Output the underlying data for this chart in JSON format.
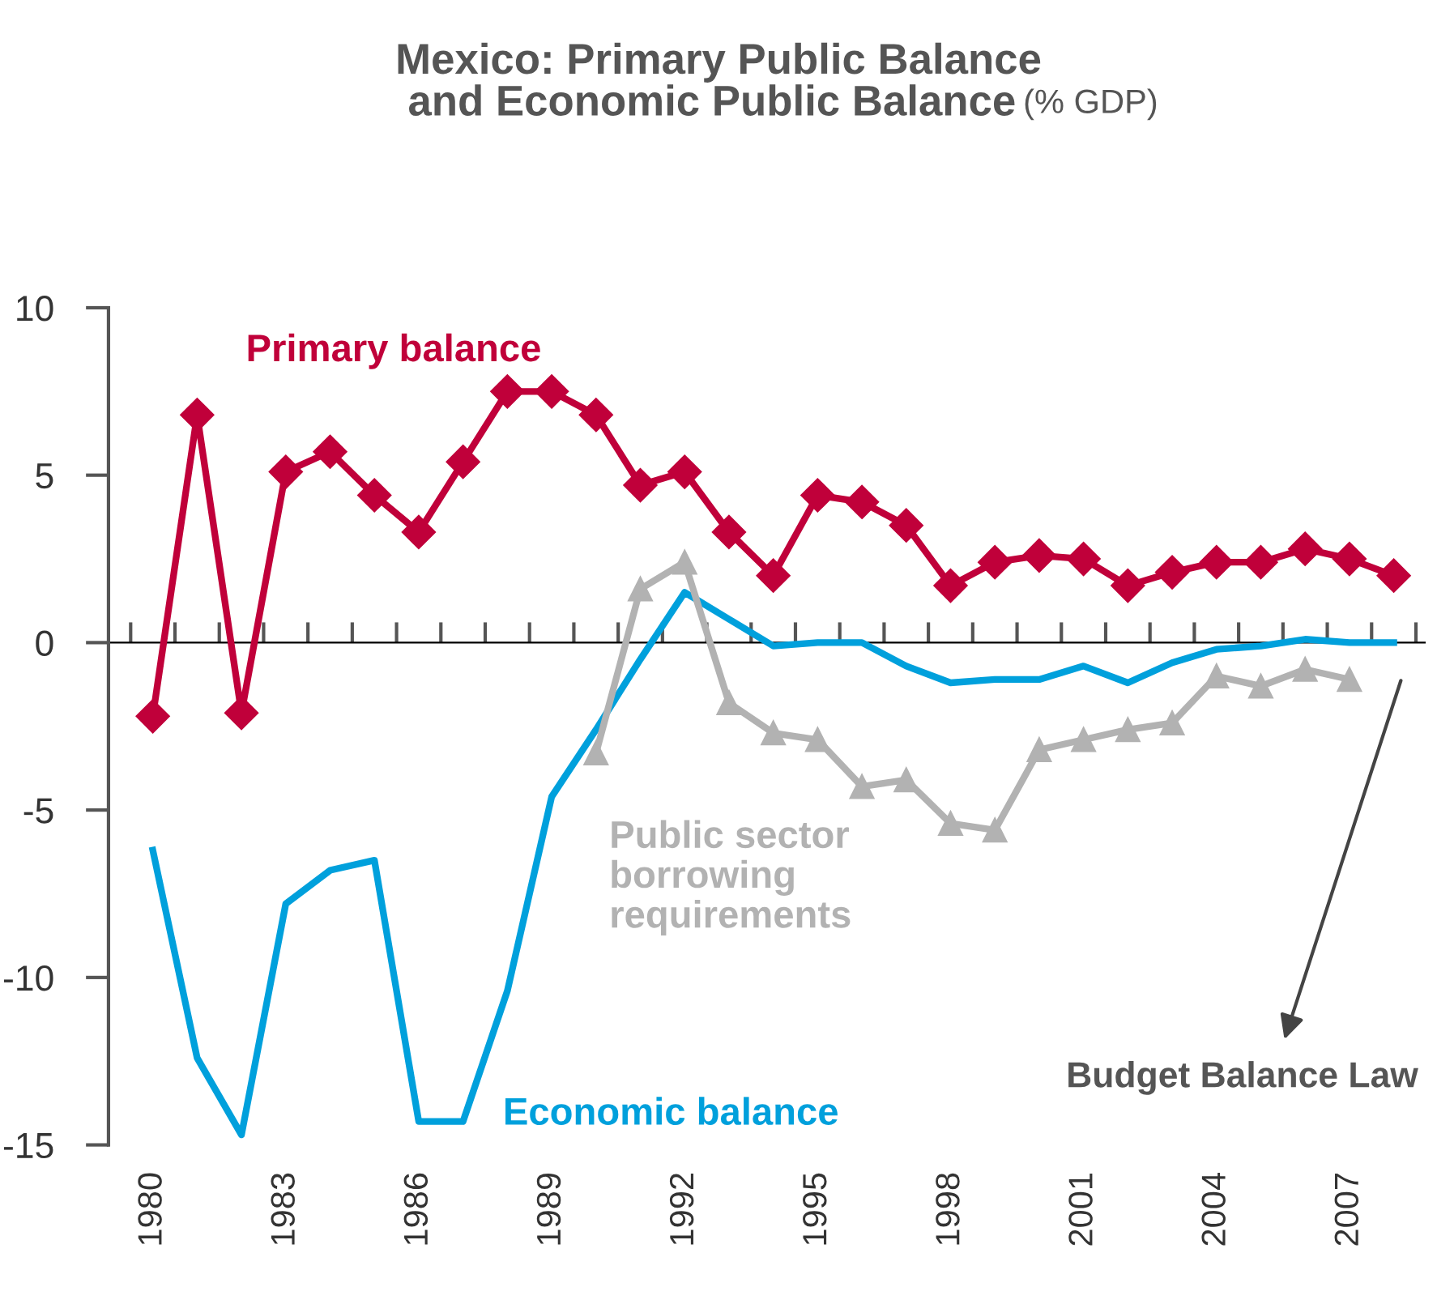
{
  "chart_data": {
    "type": "line",
    "title": "Mexico: Primary Public Balance\nand Economic Public Balance",
    "subtitle": "(% GDP)",
    "categories": [
      "1980",
      null,
      null,
      "1983",
      null,
      null,
      "1986",
      null,
      null,
      "1989",
      null,
      null,
      "1992",
      null,
      null,
      "1995",
      null,
      null,
      "1998",
      null,
      null,
      "2001",
      null,
      null,
      "2004",
      null,
      null,
      "2007",
      null
    ],
    "series": [
      {
        "name": "Primary balance",
        "color": "#c0003a",
        "marker": "diamond",
        "values": [
          -2.2,
          6.8,
          -2.1,
          5.1,
          5.7,
          4.4,
          3.3,
          5.4,
          7.5,
          7.5,
          6.8,
          4.7,
          5.1,
          3.3,
          2.0,
          4.4,
          4.2,
          3.5,
          1.7,
          2.4,
          2.6,
          2.5,
          1.7,
          2.1,
          2.4,
          2.4,
          2.8,
          2.5,
          2.0
        ]
      },
      {
        "name": "Public sector\nborrowing\nrequirements",
        "color": "#b2b2b2",
        "marker": "triangle",
        "values": [
          null,
          null,
          null,
          null,
          null,
          null,
          null,
          null,
          null,
          null,
          -3.3,
          1.6,
          2.4,
          -1.8,
          -2.7,
          -2.9,
          -4.3,
          -4.1,
          -5.4,
          -5.6,
          -3.2,
          -2.9,
          -2.6,
          -2.4,
          -1.0,
          -1.3,
          -0.8,
          -1.1,
          null
        ]
      },
      {
        "name": "Economic balance",
        "color": "#00a0dc",
        "marker": "none",
        "values": [
          -6.2,
          -12.4,
          -14.7,
          -7.8,
          -6.8,
          -6.5,
          -14.3,
          -14.3,
          -10.4,
          -4.6,
          -2.6,
          -0.5,
          1.5,
          0.7,
          -0.1,
          0.0,
          0.0,
          -0.7,
          -1.2,
          -1.1,
          -1.1,
          -0.7,
          -1.2,
          -0.6,
          -0.2,
          -0.1,
          0.1,
          0.0,
          0.0
        ]
      }
    ],
    "ylim": [
      -15,
      10
    ],
    "yticks": [
      -15,
      -10,
      -5,
      0,
      5,
      10
    ],
    "legend": false,
    "line_style": "solid",
    "annotations": [
      "Budget Balance Law"
    ]
  }
}
